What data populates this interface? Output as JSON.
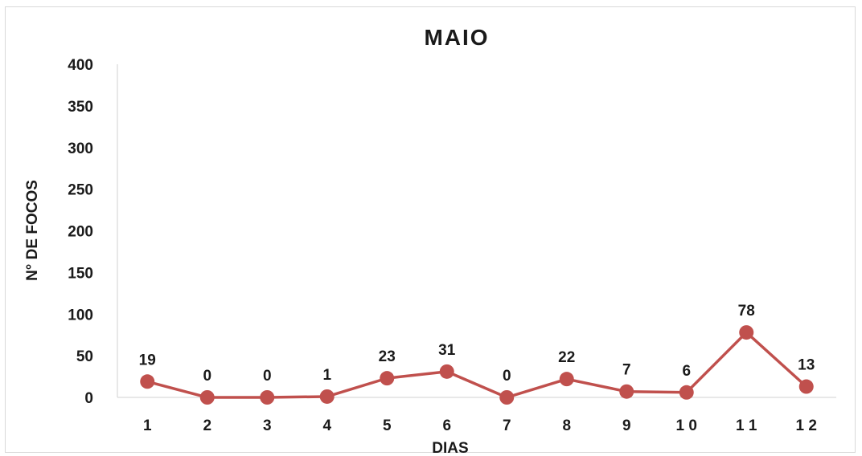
{
  "chart_data": {
    "type": "line",
    "title": "MAIO",
    "xlabel": "DIAS",
    "ylabel": "N° DE FOCOS",
    "categories": [
      "1",
      "2",
      "3",
      "4",
      "5",
      "6",
      "7",
      "8",
      "9",
      "10",
      "11",
      "12"
    ],
    "x_tick_labels": [
      "1",
      "2",
      "3",
      "4",
      "5",
      "6",
      "7",
      "8",
      "9",
      "1 0",
      "1 1",
      "1 2"
    ],
    "series": [
      {
        "values": [
          19,
          0,
          0,
          1,
          23,
          31,
          0,
          22,
          7,
          6,
          78,
          13
        ],
        "color": "#c0504d"
      }
    ],
    "data_labels": [
      "19",
      "0",
      "0",
      "1",
      "23",
      "31",
      "0",
      "22",
      "7",
      "6",
      "78",
      "13"
    ],
    "ylim": [
      0,
      400
    ],
    "yticks": [
      0,
      50,
      100,
      150,
      200,
      250,
      300,
      350,
      400
    ],
    "grid": false,
    "legend": "none"
  }
}
